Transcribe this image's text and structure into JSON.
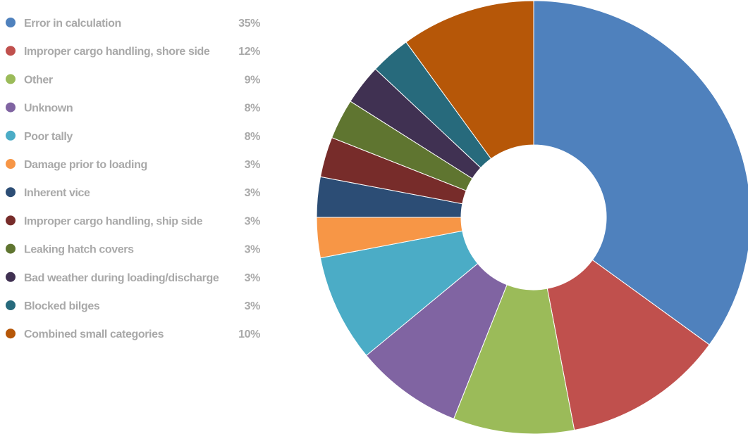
{
  "chart_data": {
    "type": "pie",
    "variant": "donut",
    "title": "",
    "legend_position": "left",
    "categories": [
      "Error in calculation",
      "Improper cargo handling, shore side",
      "Other",
      "Unknown",
      "Poor tally",
      "Damage prior to loading",
      "Inherent vice",
      "Improper cargo handling, ship side",
      "Leaking hatch covers",
      "Bad weather during loading/discharge",
      "Blocked bilges",
      "Combined small categories"
    ],
    "values": [
      35,
      12,
      9,
      8,
      8,
      3,
      3,
      3,
      3,
      3,
      3,
      10
    ],
    "value_labels": [
      "35%",
      "12%",
      "9%",
      "8%",
      "8%",
      "3%",
      "3%",
      "3%",
      "3%",
      "3%",
      "3%",
      "10%"
    ],
    "colors": [
      "#4f81bd",
      "#c0504d",
      "#9bbb59",
      "#8064a2",
      "#4bacc6",
      "#f79646",
      "#2c4d75",
      "#772c2a",
      "#5f7530",
      "#403152",
      "#276a7c",
      "#b65708"
    ]
  }
}
